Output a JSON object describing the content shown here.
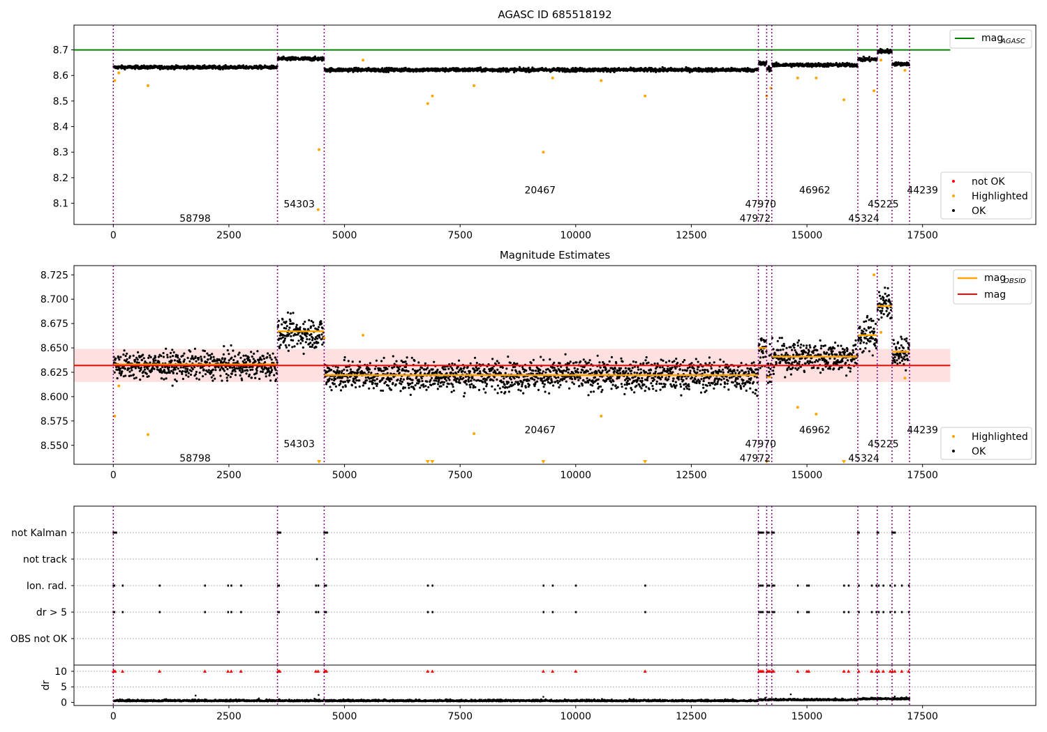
{
  "chart_data": [
    {
      "type": "scatter",
      "title": "AGASC ID 685518192",
      "xlim": [
        -850,
        19950
      ],
      "ylim": [
        8.017,
        8.797
      ],
      "xticks": [
        0,
        2500,
        5000,
        7500,
        10000,
        12500,
        15000,
        17500
      ],
      "xtick_labels": [
        "0",
        "2500",
        "5000",
        "7500",
        "10000",
        "12500",
        "15000",
        "17500"
      ],
      "yticks": [
        8.1,
        8.2,
        8.3,
        8.4,
        8.5,
        8.6,
        8.7
      ],
      "ytick_labels": [
        "8.1",
        "8.2",
        "8.3",
        "8.4",
        "8.5",
        "8.6",
        "8.7"
      ],
      "hlines": [
        {
          "name": "mag_AGASC",
          "y": 8.7,
          "x_range": [
            -850,
            18100
          ],
          "color": "#008000"
        }
      ],
      "observations": [
        {
          "obsid": "58798",
          "x_start": 0,
          "x_end": 3550,
          "ok_mean": 8.632,
          "ok_spread": 0.007,
          "label_x": 1770,
          "label_y": 8.042
        },
        {
          "obsid": "54303",
          "x_start": 3550,
          "x_end": 4560,
          "ok_mean": 8.665,
          "ok_spread": 0.008,
          "label_x": 4020,
          "label_y": 8.097
        },
        {
          "obsid": "20467",
          "x_start": 4560,
          "x_end": 13950,
          "ok_mean": 8.622,
          "ok_spread": 0.008,
          "label_x": 9230,
          "label_y": 8.152
        },
        {
          "obsid": "47972",
          "x_start": 13950,
          "x_end": 14130,
          "ok_mean": 8.646,
          "ok_spread": 0.01,
          "label_x": 13880,
          "label_y": 8.042
        },
        {
          "obsid": "47970",
          "x_start": 14130,
          "x_end": 14240,
          "ok_mean": 8.627,
          "ok_spread": 0.01,
          "label_x": 14000,
          "label_y": 8.097
        },
        {
          "obsid": "46962",
          "x_start": 14240,
          "x_end": 16100,
          "ok_mean": 8.641,
          "ok_spread": 0.008,
          "label_x": 15170,
          "label_y": 8.152
        },
        {
          "obsid": "45324",
          "x_start": 16100,
          "x_end": 16520,
          "ok_mean": 8.663,
          "ok_spread": 0.009,
          "label_x": 16230,
          "label_y": 8.042
        },
        {
          "obsid": "45225",
          "x_start": 16520,
          "x_end": 16840,
          "ok_mean": 8.694,
          "ok_spread": 0.01,
          "label_x": 16650,
          "label_y": 8.097
        },
        {
          "obsid": "44239",
          "x_start": 16840,
          "x_end": 17220,
          "ok_mean": 8.645,
          "ok_spread": 0.007,
          "label_x": 17500,
          "label_y": 8.152
        }
      ],
      "obs_boundaries": [
        0,
        3550,
        4560,
        13950,
        14130,
        14240,
        16100,
        16520,
        16840,
        17220
      ],
      "highlighted_points": [
        [
          30,
          8.58
        ],
        [
          120,
          8.61
        ],
        [
          750,
          8.56
        ],
        [
          4450,
          8.31
        ],
        [
          4430,
          8.075
        ],
        [
          5400,
          8.66
        ],
        [
          6800,
          8.49
        ],
        [
          6900,
          8.52
        ],
        [
          7800,
          8.56
        ],
        [
          9300,
          8.3
        ],
        [
          9500,
          8.59
        ],
        [
          10550,
          8.58
        ],
        [
          11500,
          8.52
        ],
        [
          14130,
          8.52
        ],
        [
          14220,
          8.55
        ],
        [
          14800,
          8.59
        ],
        [
          15200,
          8.59
        ],
        [
          15800,
          8.505
        ],
        [
          16450,
          8.54
        ],
        [
          16600,
          8.66
        ],
        [
          17120,
          8.62
        ]
      ],
      "legend": {
        "placement": "lower-right",
        "entries": [
          "not OK",
          "Highlighted",
          "OK"
        ]
      },
      "legend2": {
        "placement": "upper-right",
        "entries": [
          "mag",
          "AGASC"
        ]
      },
      "colors": {
        "ok": "#000000",
        "highlighted": "#FFA500",
        "not_ok": "#FF0000",
        "agasc": "#008000",
        "boundary": "#800080"
      }
    },
    {
      "type": "scatter",
      "title": "Magnitude Estimates",
      "xlim": [
        -850,
        19950
      ],
      "ylim": [
        8.5305,
        8.7345
      ],
      "xticks": [
        0,
        2500,
        5000,
        7500,
        10000,
        12500,
        15000,
        17500
      ],
      "xtick_labels": [
        "0",
        "2500",
        "5000",
        "7500",
        "10000",
        "12500",
        "15000",
        "17500"
      ],
      "yticks": [
        8.55,
        8.575,
        8.6,
        8.625,
        8.65,
        8.675,
        8.7,
        8.725
      ],
      "ytick_labels": [
        "8.550",
        "8.575",
        "8.600",
        "8.625",
        "8.650",
        "8.675",
        "8.700",
        "8.725"
      ],
      "mag": {
        "value": 8.632,
        "band": [
          8.615,
          8.649
        ],
        "x_range": [
          -850,
          18100
        ],
        "color": "#FF0000"
      },
      "mag_obsid": [
        {
          "x_start": 0,
          "x_end": 3550,
          "y": 8.633
        },
        {
          "x_start": 3550,
          "x_end": 4560,
          "y": 8.667
        },
        {
          "x_start": 4560,
          "x_end": 13950,
          "y": 8.622
        },
        {
          "x_start": 13950,
          "x_end": 14130,
          "y": 8.65
        },
        {
          "x_start": 14130,
          "x_end": 14240,
          "y": 8.62
        },
        {
          "x_start": 14240,
          "x_end": 16100,
          "y": 8.641
        },
        {
          "x_start": 16100,
          "x_end": 16520,
          "y": 8.663
        },
        {
          "x_start": 16520,
          "x_end": 16840,
          "y": 8.693
        },
        {
          "x_start": 16840,
          "x_end": 17220,
          "y": 8.646
        }
      ],
      "observations_labels": [
        {
          "obsid": "58798",
          "x": 1770,
          "y": 8.537
        },
        {
          "obsid": "54303",
          "x": 4020,
          "y": 8.5515
        },
        {
          "obsid": "20467",
          "x": 9230,
          "y": 8.566
        },
        {
          "obsid": "47972",
          "x": 13880,
          "y": 8.537
        },
        {
          "obsid": "47970",
          "x": 14000,
          "y": 8.5515
        },
        {
          "obsid": "46962",
          "x": 15170,
          "y": 8.566
        },
        {
          "obsid": "45324",
          "x": 16230,
          "y": 8.537
        },
        {
          "obsid": "45225",
          "x": 16650,
          "y": 8.5515
        },
        {
          "obsid": "44239",
          "x": 17500,
          "y": 8.566
        }
      ],
      "highlighted_points": [
        [
          30,
          8.58
        ],
        [
          120,
          8.611
        ],
        [
          750,
          8.561
        ],
        [
          5400,
          8.663
        ],
        [
          7800,
          8.562
        ],
        [
          10550,
          8.58
        ],
        [
          14800,
          8.589
        ],
        [
          15200,
          8.582
        ],
        [
          16600,
          8.666
        ],
        [
          17120,
          8.619
        ],
        [
          4560,
          8.66
        ],
        [
          16450,
          8.725
        ]
      ],
      "offscale_markers": [
        4450,
        6800,
        6900,
        9300,
        11500,
        14130,
        15800
      ],
      "legend": {
        "placement": "lower-right",
        "entries": [
          "Highlighted",
          "OK"
        ]
      },
      "legend2": {
        "placement": "upper-right",
        "entries": [
          "mag",
          "OBSID",
          "mag"
        ]
      }
    },
    {
      "type": "scatter",
      "title": "",
      "xlim": [
        -850,
        19950
      ],
      "flag_rows": [
        "not Kalman",
        "not track",
        "Ion. rad.",
        "dr > 5",
        "OBS not OK"
      ],
      "flags": {
        "not Kalman": [
          0,
          20,
          40,
          60,
          3550,
          3570,
          3590,
          3610,
          4560,
          4580,
          4600,
          4620,
          13950,
          13970,
          13990,
          14010,
          14030,
          14050,
          14130,
          14150,
          14170,
          14240,
          14260,
          14280,
          16100,
          16120,
          16520,
          16540,
          16840,
          16860,
          16880,
          16900
        ],
        "not track": [
          4400
        ],
        "Ion. rad.": [
          0,
          20,
          200,
          1000,
          1980,
          2480,
          2550,
          2760,
          3560,
          3580,
          4380,
          4430,
          4570,
          4600,
          6800,
          6900,
          9300,
          9500,
          10000,
          11500,
          13960,
          14000,
          14040,
          14140,
          14180,
          14250,
          14290,
          14800,
          15000,
          15040,
          15800,
          15900,
          16120,
          16400,
          16500,
          16550,
          16650,
          16800,
          16900,
          17050,
          17200
        ],
        "dr > 5": [
          0,
          20,
          200,
          1000,
          1980,
          2480,
          2550,
          2760,
          3560,
          3580,
          4380,
          4430,
          4570,
          4600,
          6800,
          6900,
          9300,
          9500,
          10000,
          11500,
          13960,
          14000,
          14040,
          14140,
          14180,
          14250,
          14290,
          14800,
          15000,
          15040,
          15800,
          15900,
          16120,
          16400,
          16500,
          16550,
          16650,
          16800,
          16900,
          17050,
          17200
        ],
        "OBS not OK": []
      },
      "dr": {
        "ylabel": "dr",
        "yticks": [
          0,
          5,
          10
        ],
        "ytick_labels": [
          "0",
          "5",
          "10"
        ],
        "ylim": [
          -1,
          12
        ],
        "baseline_mean": 0.35,
        "clipped_at": 10,
        "clipped_x": [
          0,
          20,
          40,
          200,
          1000,
          1980,
          2480,
          2550,
          2760,
          3560,
          3580,
          3600,
          4380,
          4430,
          4570,
          4590,
          4610,
          6800,
          6900,
          9300,
          9500,
          10000,
          11500,
          13960,
          13990,
          14020,
          14050,
          14140,
          14170,
          14200,
          14250,
          14280,
          14800,
          15000,
          15040,
          15800,
          15900,
          16120,
          16400,
          16500,
          16550,
          16650,
          16800,
          16850,
          16900,
          17050,
          17200
        ],
        "outliers": [
          [
            1780,
            2.2
          ],
          [
            3150,
            1.3
          ],
          [
            4350,
            1.2
          ],
          [
            4440,
            2.4
          ],
          [
            9300,
            1.8
          ],
          [
            14100,
            1.5
          ],
          [
            14650,
            2.6
          ],
          [
            16900,
            1.9
          ],
          [
            17150,
            1.7
          ]
        ]
      },
      "xticks": [
        0,
        2500,
        5000,
        7500,
        10000,
        12500,
        15000,
        17500
      ],
      "xtick_labels": [
        "0",
        "2500",
        "5000",
        "7500",
        "10000",
        "12500",
        "15000",
        "17500"
      ]
    }
  ]
}
